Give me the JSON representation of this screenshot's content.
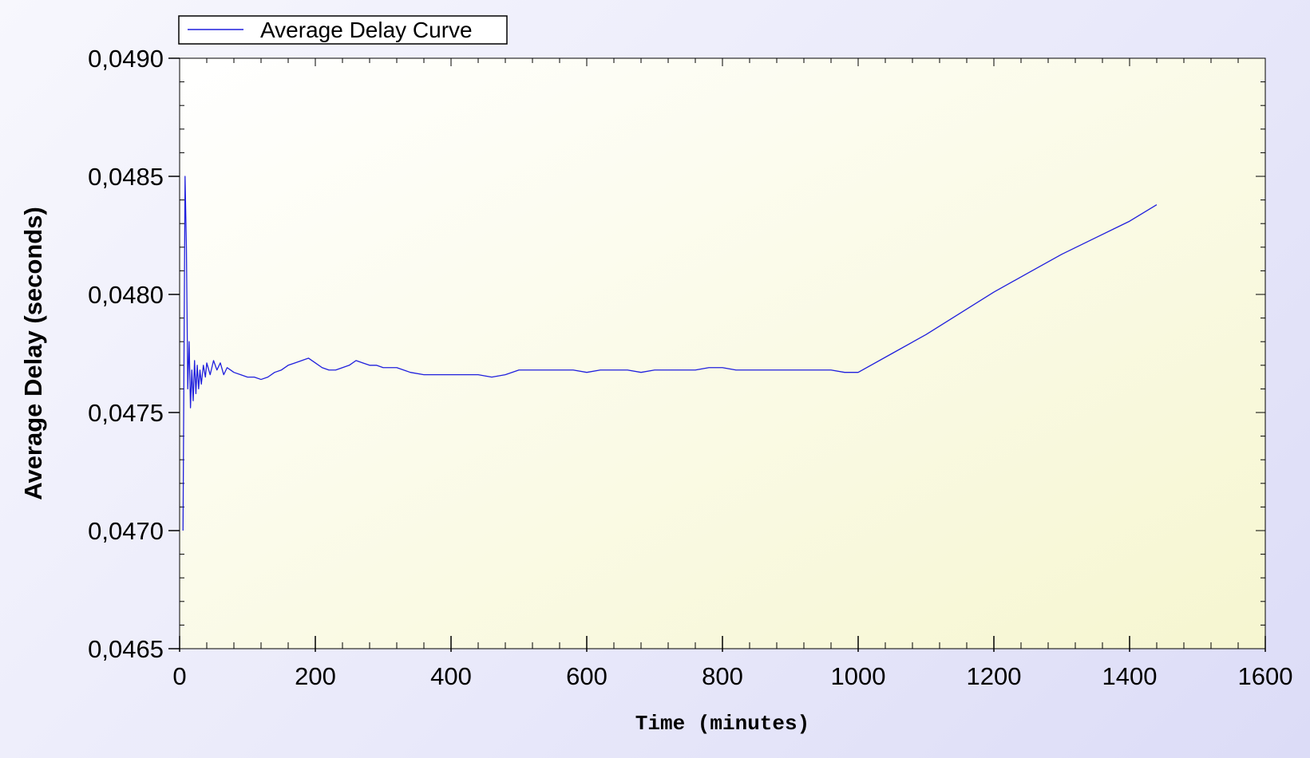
{
  "chart_data": {
    "type": "line",
    "xlabel": "Time (minutes)",
    "ylabel": "Average Delay (seconds)",
    "xlim": [
      0,
      1600
    ],
    "ylim": [
      0.0465,
      0.049
    ],
    "x_ticks": [
      0,
      200,
      400,
      600,
      800,
      1000,
      1200,
      1400,
      1600
    ],
    "x_tick_labels": [
      "0",
      "200",
      "400",
      "600",
      "800",
      "1000",
      "1200",
      "1400",
      "1600"
    ],
    "y_ticks": [
      0.0465,
      0.047,
      0.0475,
      0.048,
      0.0485,
      0.049
    ],
    "y_tick_labels": [
      "0,0465",
      "0,0470",
      "0,0475",
      "0,0480",
      "0,0485",
      "0,0490"
    ],
    "grid": false,
    "legend_position": "top-left",
    "series": [
      {
        "name": "Average Delay Curve",
        "color": "#1f1fdd",
        "x": [
          5,
          8,
          10,
          12,
          14,
          16,
          18,
          20,
          22,
          24,
          26,
          28,
          30,
          32,
          35,
          38,
          40,
          45,
          50,
          55,
          60,
          65,
          70,
          75,
          80,
          90,
          100,
          110,
          120,
          130,
          140,
          150,
          160,
          170,
          180,
          190,
          200,
          210,
          220,
          230,
          240,
          250,
          260,
          270,
          280,
          290,
          300,
          320,
          340,
          360,
          380,
          400,
          420,
          440,
          460,
          480,
          500,
          520,
          540,
          560,
          580,
          600,
          620,
          640,
          660,
          680,
          700,
          720,
          740,
          760,
          780,
          800,
          820,
          840,
          860,
          880,
          900,
          920,
          940,
          960,
          980,
          1000,
          1050,
          1100,
          1150,
          1200,
          1250,
          1300,
          1350,
          1400,
          1440
        ],
        "y": [
          0.047,
          0.0485,
          0.0482,
          0.0476,
          0.0478,
          0.04752,
          0.04768,
          0.04755,
          0.04772,
          0.04758,
          0.0477,
          0.0476,
          0.04768,
          0.04762,
          0.0477,
          0.04765,
          0.04771,
          0.04766,
          0.04772,
          0.04768,
          0.04771,
          0.04766,
          0.04769,
          0.04768,
          0.04767,
          0.04766,
          0.04765,
          0.04765,
          0.04764,
          0.04765,
          0.04767,
          0.04768,
          0.0477,
          0.04771,
          0.04772,
          0.04773,
          0.04771,
          0.04769,
          0.04768,
          0.04768,
          0.04769,
          0.0477,
          0.04772,
          0.04771,
          0.0477,
          0.0477,
          0.04769,
          0.04769,
          0.04767,
          0.04766,
          0.04766,
          0.04766,
          0.04766,
          0.04766,
          0.04765,
          0.04766,
          0.04768,
          0.04768,
          0.04768,
          0.04768,
          0.04768,
          0.04767,
          0.04768,
          0.04768,
          0.04768,
          0.04767,
          0.04768,
          0.04768,
          0.04768,
          0.04768,
          0.04769,
          0.04769,
          0.04768,
          0.04768,
          0.04768,
          0.04768,
          0.04768,
          0.04768,
          0.04768,
          0.04768,
          0.04767,
          0.04767,
          0.04775,
          0.04783,
          0.04792,
          0.04801,
          0.04809,
          0.04817,
          0.04824,
          0.04831,
          0.04838
        ]
      }
    ]
  }
}
